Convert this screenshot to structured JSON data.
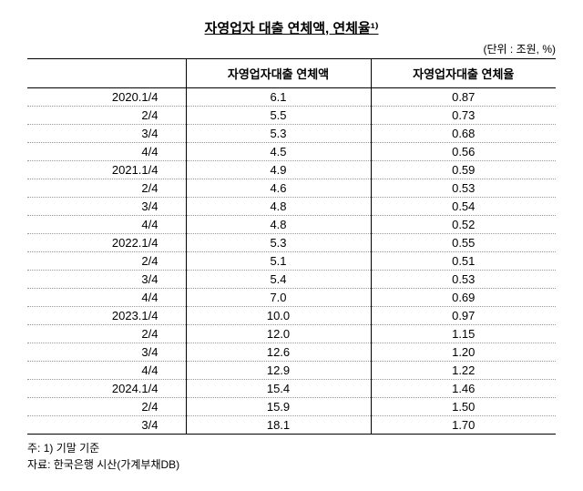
{
  "title": "자영업자 대출 연체액, 연체율¹⁾",
  "unit": "(단위 : 조원, %)",
  "columns": [
    "",
    "자영업자대출 연체액",
    "자영업자대출 연체율"
  ],
  "rows": [
    [
      "2020.1/4",
      "6.1",
      "0.87"
    ],
    [
      "2/4",
      "5.5",
      "0.73"
    ],
    [
      "3/4",
      "5.3",
      "0.68"
    ],
    [
      "4/4",
      "4.5",
      "0.56"
    ],
    [
      "2021.1/4",
      "4.9",
      "0.59"
    ],
    [
      "2/4",
      "4.6",
      "0.53"
    ],
    [
      "3/4",
      "4.8",
      "0.54"
    ],
    [
      "4/4",
      "4.8",
      "0.52"
    ],
    [
      "2022.1/4",
      "5.3",
      "0.55"
    ],
    [
      "2/4",
      "5.1",
      "0.51"
    ],
    [
      "3/4",
      "5.4",
      "0.53"
    ],
    [
      "4/4",
      "7.0",
      "0.69"
    ],
    [
      "2023.1/4",
      "10.0",
      "0.97"
    ],
    [
      "2/4",
      "12.0",
      "1.15"
    ],
    [
      "3/4",
      "12.6",
      "1.20"
    ],
    [
      "4/4",
      "12.9",
      "1.22"
    ],
    [
      "2024.1/4",
      "15.4",
      "1.46"
    ],
    [
      "2/4",
      "15.9",
      "1.50"
    ],
    [
      "3/4",
      "18.1",
      "1.70"
    ]
  ],
  "footnote_line1": "주: 1) 기말 기준",
  "footnote_line2": "자료: 한국은행 시산(가계부채DB)"
}
